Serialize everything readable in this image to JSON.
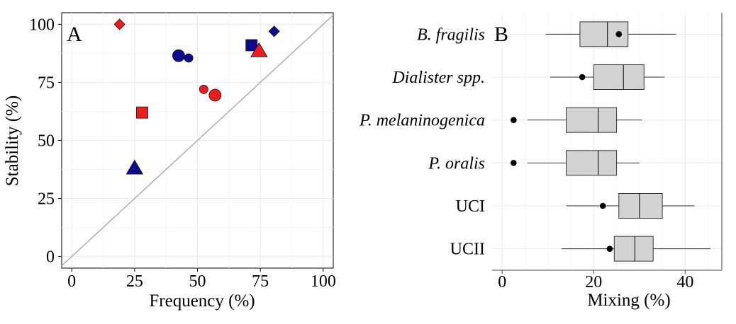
{
  "chart_data": [
    {
      "panel": "A",
      "type": "scatter",
      "xlabel": "Frequency (%)",
      "ylabel": "Stability (%)",
      "xlim": [
        -4,
        104
      ],
      "ylim": [
        -5,
        105
      ],
      "xticks": [
        0,
        25,
        50,
        75,
        100
      ],
      "yticks": [
        0,
        25,
        50,
        75,
        100
      ],
      "reference_line": "y = x",
      "grid": true,
      "colors": {
        "red": "#ee1c1c",
        "blue": "#0b0b8c"
      },
      "points": [
        {
          "x": 19,
          "y": 100,
          "shape": "diamond",
          "color": "red",
          "size": "small"
        },
        {
          "x": 80.5,
          "y": 97,
          "shape": "diamond",
          "color": "blue",
          "size": "small"
        },
        {
          "x": 42.5,
          "y": 86.5,
          "shape": "circle",
          "color": "blue",
          "size": "large"
        },
        {
          "x": 46.5,
          "y": 85.5,
          "shape": "circle",
          "color": "blue",
          "size": "small"
        },
        {
          "x": 71.5,
          "y": 91,
          "shape": "square",
          "color": "blue",
          "size": "large"
        },
        {
          "x": 74.5,
          "y": 88.5,
          "shape": "triangle",
          "color": "red",
          "size": "large"
        },
        {
          "x": 52.5,
          "y": 72,
          "shape": "circle",
          "color": "red",
          "size": "small"
        },
        {
          "x": 57,
          "y": 69.5,
          "shape": "circle",
          "color": "red",
          "size": "large"
        },
        {
          "x": 28,
          "y": 62,
          "shape": "square",
          "color": "red",
          "size": "large"
        },
        {
          "x": 25,
          "y": 38,
          "shape": "triangle",
          "color": "blue",
          "size": "large"
        }
      ]
    },
    {
      "panel": "B",
      "type": "boxplot",
      "orientation": "horizontal",
      "xlabel": "Mixing (%)",
      "xlim": [
        -2.2,
        48
      ],
      "xticks": [
        0,
        20,
        40
      ],
      "grid": true,
      "box_color": "#d3d3d3",
      "categories": [
        "B. fragilis",
        "Dialister spp.",
        "P. melaninogenica",
        "P. oralis",
        "UCI",
        "UCII"
      ],
      "italic": [
        true,
        true,
        true,
        true,
        false,
        false
      ],
      "boxes": [
        {
          "whisker_low": 9.5,
          "q1": 17,
          "median": 23,
          "q3": 27.5,
          "whisker_high": 38,
          "point": 25.5
        },
        {
          "whisker_low": 10.5,
          "q1": 20,
          "median": 26.5,
          "q3": 31,
          "whisker_high": 35.5,
          "point": 17.5
        },
        {
          "whisker_low": 5.5,
          "q1": 14,
          "median": 21,
          "q3": 25,
          "whisker_high": 30.5,
          "point": 2.5
        },
        {
          "whisker_low": 5.5,
          "q1": 14,
          "median": 21,
          "q3": 25,
          "whisker_high": 30,
          "point": 2.5
        },
        {
          "whisker_low": 14,
          "q1": 25.5,
          "median": 30,
          "q3": 35,
          "whisker_high": 42,
          "point": 22
        },
        {
          "whisker_low": 13,
          "q1": 24.5,
          "median": 29,
          "q3": 33,
          "whisker_high": 45.5,
          "point": 23.5
        }
      ]
    }
  ]
}
